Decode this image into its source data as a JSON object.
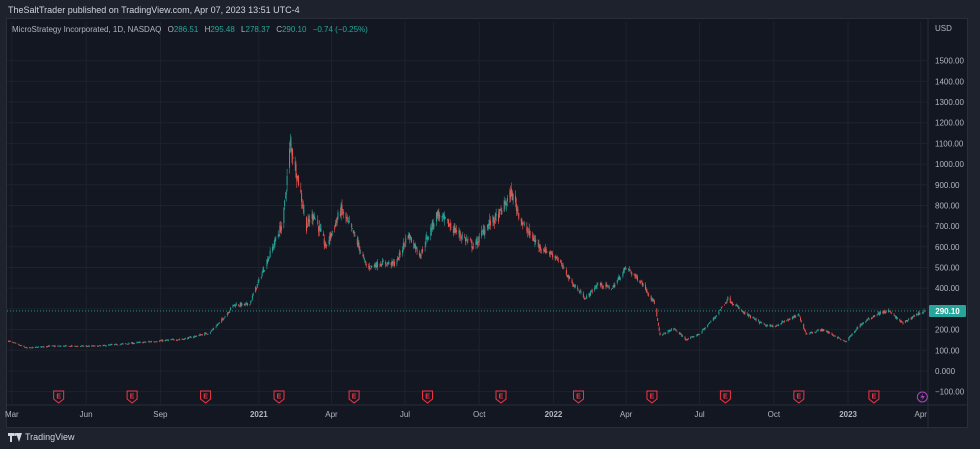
{
  "header": {
    "published_text": "TheSaltTrader published on TradingView.com, Apr 07, 2023 13:51 UTC-4"
  },
  "legend": {
    "symbol": "MicroStrategy Incorporated, 1D, NASDAQ",
    "open_label": "O",
    "open": "286.51",
    "high_label": "H",
    "high": "295.48",
    "low_label": "L",
    "low": "278.37",
    "close_label": "C",
    "close": "290.10",
    "change": "−0.74 (−0.25%)"
  },
  "footer": {
    "brand": "TradingView"
  },
  "colors": {
    "background": "#131722",
    "up": "#26a69a",
    "down": "#ef5350",
    "price_line": "#26a69a",
    "earnings": "#f23645",
    "split_event": "#ab47bc",
    "text": "#d1d4dc"
  },
  "chart_data": {
    "type": "candlestick",
    "currency": "USD",
    "ylim": [
      -150,
      1600
    ],
    "yticks": [
      -100,
      0,
      100,
      200,
      300,
      400,
      500,
      600,
      700,
      800,
      900,
      1000,
      1100,
      1200,
      1300,
      1400,
      1500
    ],
    "ytick_labels": [
      "−100.00",
      "0.000",
      "100.00",
      "200.00",
      "300.00",
      "400.00",
      "500.00",
      "600.00",
      "700.00",
      "800.00",
      "900.00",
      "1000.00",
      "1100.00",
      "1200.00",
      "1300.00",
      "1400.00",
      "1500.00"
    ],
    "xlim": [
      "2020-02-24",
      "2023-04-10"
    ],
    "xticks": [
      {
        "date": "2020-03-01",
        "label": "Mar",
        "bold": false
      },
      {
        "date": "2020-06-01",
        "label": "Jun",
        "bold": false
      },
      {
        "date": "2020-09-01",
        "label": "Sep",
        "bold": false
      },
      {
        "date": "2021-01-01",
        "label": "2021",
        "bold": true
      },
      {
        "date": "2021-04-01",
        "label": "Apr",
        "bold": false
      },
      {
        "date": "2021-07-01",
        "label": "Jul",
        "bold": false
      },
      {
        "date": "2021-10-01",
        "label": "Oct",
        "bold": false
      },
      {
        "date": "2022-01-01",
        "label": "2022",
        "bold": true
      },
      {
        "date": "2022-04-01",
        "label": "Apr",
        "bold": false
      },
      {
        "date": "2022-07-01",
        "label": "Jul",
        "bold": false
      },
      {
        "date": "2022-10-01",
        "label": "Oct",
        "bold": false
      },
      {
        "date": "2023-01-01",
        "label": "2023",
        "bold": true
      },
      {
        "date": "2023-04-01",
        "label": "Apr",
        "bold": false
      }
    ],
    "price_trend": [
      {
        "date": "2020-02-26",
        "close": 145
      },
      {
        "date": "2020-03-20",
        "close": 110
      },
      {
        "date": "2020-04-15",
        "close": 120
      },
      {
        "date": "2020-06-15",
        "close": 120
      },
      {
        "date": "2020-08-15",
        "close": 140
      },
      {
        "date": "2020-10-01",
        "close": 155
      },
      {
        "date": "2020-11-01",
        "close": 185
      },
      {
        "date": "2020-11-15",
        "close": 240
      },
      {
        "date": "2020-12-01",
        "close": 320
      },
      {
        "date": "2020-12-20",
        "close": 320
      },
      {
        "date": "2021-01-10",
        "close": 520
      },
      {
        "date": "2021-01-31",
        "close": 720
      },
      {
        "date": "2021-02-09",
        "close": 1100
      },
      {
        "date": "2021-02-20",
        "close": 900
      },
      {
        "date": "2021-03-01",
        "close": 700
      },
      {
        "date": "2021-03-10",
        "close": 760
      },
      {
        "date": "2021-03-25",
        "close": 600
      },
      {
        "date": "2021-04-13",
        "close": 780
      },
      {
        "date": "2021-04-30",
        "close": 650
      },
      {
        "date": "2021-05-15",
        "close": 500
      },
      {
        "date": "2021-06-01",
        "close": 520
      },
      {
        "date": "2021-06-20",
        "close": 520
      },
      {
        "date": "2021-07-05",
        "close": 660
      },
      {
        "date": "2021-07-20",
        "close": 560
      },
      {
        "date": "2021-08-10",
        "close": 760
      },
      {
        "date": "2021-09-01",
        "close": 680
      },
      {
        "date": "2021-09-25",
        "close": 600
      },
      {
        "date": "2021-10-10",
        "close": 700
      },
      {
        "date": "2021-10-25",
        "close": 750
      },
      {
        "date": "2021-11-10",
        "close": 860
      },
      {
        "date": "2021-11-25",
        "close": 700
      },
      {
        "date": "2021-12-15",
        "close": 600
      },
      {
        "date": "2022-01-05",
        "close": 550
      },
      {
        "date": "2022-01-25",
        "close": 420
      },
      {
        "date": "2022-02-10",
        "close": 350
      },
      {
        "date": "2022-02-25",
        "close": 420
      },
      {
        "date": "2022-03-15",
        "close": 400
      },
      {
        "date": "2022-04-01",
        "close": 500
      },
      {
        "date": "2022-04-20",
        "close": 430
      },
      {
        "date": "2022-05-06",
        "close": 330
      },
      {
        "date": "2022-05-13",
        "close": 170
      },
      {
        "date": "2022-05-30",
        "close": 205
      },
      {
        "date": "2022-06-15",
        "close": 150
      },
      {
        "date": "2022-07-01",
        "close": 180
      },
      {
        "date": "2022-07-20",
        "close": 260
      },
      {
        "date": "2022-08-05",
        "close": 350
      },
      {
        "date": "2022-08-25",
        "close": 280
      },
      {
        "date": "2022-09-20",
        "close": 220
      },
      {
        "date": "2022-10-01",
        "close": 215
      },
      {
        "date": "2022-10-20",
        "close": 250
      },
      {
        "date": "2022-11-01",
        "close": 270
      },
      {
        "date": "2022-11-10",
        "close": 180
      },
      {
        "date": "2022-12-01",
        "close": 200
      },
      {
        "date": "2022-12-20",
        "close": 160
      },
      {
        "date": "2022-12-29",
        "close": 140
      },
      {
        "date": "2023-01-15",
        "close": 220
      },
      {
        "date": "2023-02-05",
        "close": 275
      },
      {
        "date": "2023-02-20",
        "close": 290
      },
      {
        "date": "2023-03-10",
        "close": 230
      },
      {
        "date": "2023-03-25",
        "close": 270
      },
      {
        "date": "2023-04-06",
        "close": 290.1
      }
    ],
    "last_price": 290.1,
    "last_price_label": "290.10",
    "earnings_marker_label": "E",
    "earnings_dates": [
      "2020-04-28",
      "2020-07-28",
      "2020-10-27",
      "2021-01-26",
      "2021-04-29",
      "2021-07-29",
      "2021-10-28",
      "2022-02-01",
      "2022-05-03",
      "2022-08-02",
      "2022-11-01",
      "2023-02-02"
    ],
    "event_marker": {
      "date": "2023-04-03",
      "icon": "lightning-icon"
    }
  }
}
